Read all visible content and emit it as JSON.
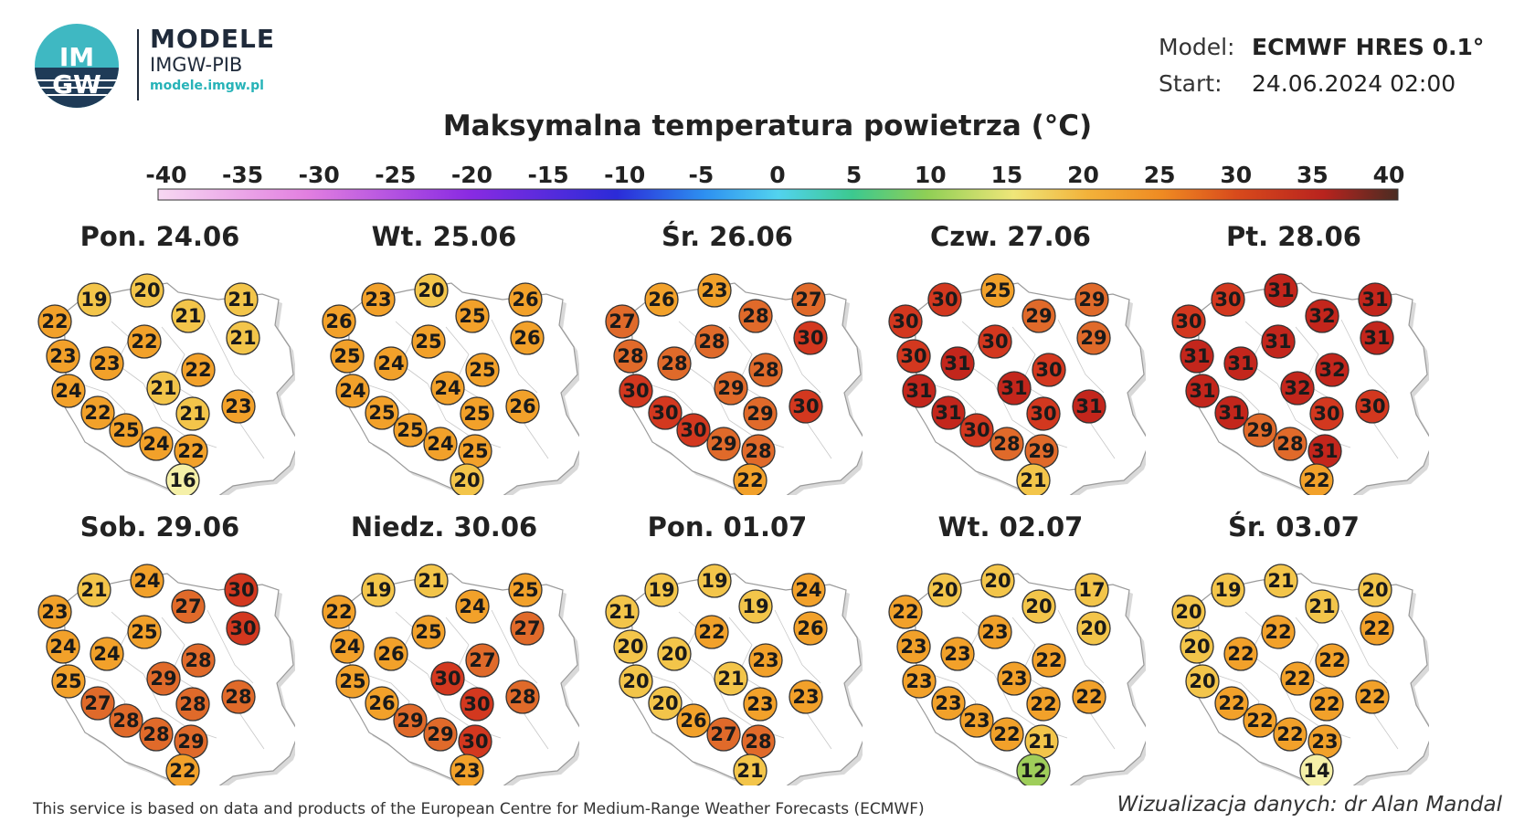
{
  "header": {
    "logo_text_top": "IM",
    "logo_text_bottom": "GW",
    "brand_title": "MODELE",
    "brand_sub": "IMGW-PIB",
    "brand_url": "modele.imgw.pl"
  },
  "model_info": {
    "model_label": "Model:",
    "model_value": "ECMWF HRES 0.1°",
    "start_label": "Start:",
    "start_value": "24.06.2024 02:00"
  },
  "title": "Maksymalna temperatura powietrza (°C)",
  "scale": {
    "ticks": [
      "-40",
      "-35",
      "-30",
      "-25",
      "-20",
      "-15",
      "-10",
      "-5",
      "0",
      "5",
      "10",
      "15",
      "20",
      "25",
      "30",
      "35",
      "40"
    ],
    "min": -40,
    "max": 40
  },
  "panels": [
    {
      "day": "Pon. 24.06",
      "values": [
        19,
        20,
        22,
        21,
        21,
        22,
        21,
        23,
        23,
        22,
        24,
        21,
        22,
        21,
        23,
        25,
        24,
        22,
        16
      ]
    },
    {
      "day": "Wt. 25.06",
      "values": [
        23,
        20,
        26,
        25,
        26,
        25,
        26,
        25,
        24,
        25,
        24,
        24,
        25,
        25,
        26,
        25,
        24,
        25,
        20
      ]
    },
    {
      "day": "Śr. 26.06",
      "values": [
        26,
        23,
        27,
        28,
        27,
        28,
        30,
        28,
        28,
        28,
        30,
        29,
        30,
        29,
        30,
        30,
        29,
        28,
        22
      ]
    },
    {
      "day": "Czw. 27.06",
      "values": [
        30,
        25,
        30,
        29,
        29,
        30,
        29,
        30,
        31,
        30,
        31,
        31,
        31,
        30,
        31,
        30,
        28,
        29,
        21
      ]
    },
    {
      "day": "Pt. 28.06",
      "values": [
        30,
        31,
        30,
        32,
        31,
        31,
        31,
        31,
        31,
        32,
        31,
        32,
        31,
        30,
        30,
        29,
        28,
        31,
        22
      ]
    },
    {
      "day": "Sob. 29.06",
      "values": [
        21,
        24,
        23,
        27,
        30,
        25,
        30,
        24,
        24,
        28,
        25,
        29,
        27,
        28,
        28,
        28,
        28,
        29,
        22
      ]
    },
    {
      "day": "Niedz. 30.06",
      "values": [
        19,
        21,
        22,
        24,
        25,
        25,
        27,
        24,
        26,
        27,
        25,
        30,
        26,
        30,
        28,
        29,
        29,
        30,
        23
      ]
    },
    {
      "day": "Pon. 01.07",
      "values": [
        19,
        19,
        21,
        19,
        24,
        22,
        26,
        20,
        20,
        23,
        20,
        21,
        20,
        23,
        23,
        26,
        27,
        28,
        21
      ]
    },
    {
      "day": "Wt. 02.07",
      "values": [
        20,
        20,
        22,
        20,
        17,
        23,
        20,
        23,
        23,
        22,
        23,
        23,
        23,
        22,
        22,
        23,
        22,
        21,
        12
      ]
    },
    {
      "day": "Śr. 03.07",
      "values": [
        19,
        21,
        20,
        21,
        20,
        22,
        22,
        20,
        22,
        22,
        20,
        22,
        22,
        22,
        22,
        22,
        22,
        23,
        14
      ]
    }
  ],
  "colors": {
    "cold": "#f5f0a8",
    "mild": "#f3c54a",
    "warm": "#f2a12a",
    "hot": "#e06a2a",
    "very_hot": "#d3381f",
    "extreme": "#c3261c",
    "cool_green": "#9fce5a"
  },
  "footer": "This service is based on data and products of the European Centre for Medium-Range Weather Forecasts (ECMWF)",
  "credit": "Wizualizacja danych: dr Alan Mandal"
}
